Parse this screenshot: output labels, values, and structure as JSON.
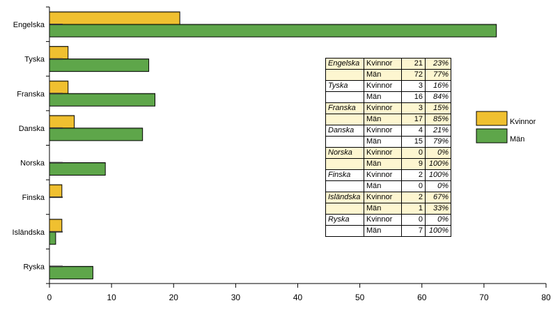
{
  "chart_data": {
    "type": "bar",
    "orientation": "horizontal",
    "categories": [
      "Engelska",
      "Tyska",
      "Franska",
      "Danska",
      "Norska",
      "Finska",
      "Isländska",
      "Ryska"
    ],
    "series": [
      {
        "name": "Kvinnor",
        "color": "#f0c030",
        "values": [
          21,
          3,
          3,
          4,
          0,
          2,
          2,
          0
        ]
      },
      {
        "name": "Män",
        "color": "#5ea64a",
        "values": [
          72,
          16,
          17,
          15,
          9,
          0,
          1,
          7
        ]
      }
    ],
    "xlim": [
      0,
      80
    ],
    "xticks": [
      0,
      10,
      20,
      30,
      40,
      50,
      60,
      70,
      80
    ],
    "legend_position": "right",
    "grid": false
  },
  "table": {
    "rows": [
      {
        "lang": "Engelska",
        "gender": "Kvinnor",
        "count": "21",
        "pct": "23%"
      },
      {
        "lang": "",
        "gender": "Män",
        "count": "72",
        "pct": "77%"
      },
      {
        "lang": "Tyska",
        "gender": "Kvinnor",
        "count": "3",
        "pct": "16%"
      },
      {
        "lang": "",
        "gender": "Män",
        "count": "16",
        "pct": "84%"
      },
      {
        "lang": "Franska",
        "gender": "Kvinnor",
        "count": "3",
        "pct": "15%"
      },
      {
        "lang": "",
        "gender": "Män",
        "count": "17",
        "pct": "85%"
      },
      {
        "lang": "Danska",
        "gender": "Kvinnor",
        "count": "4",
        "pct": "21%"
      },
      {
        "lang": "",
        "gender": "Män",
        "count": "15",
        "pct": "79%"
      },
      {
        "lang": "Norska",
        "gender": "Kvinnor",
        "count": "0",
        "pct": "0%"
      },
      {
        "lang": "",
        "gender": "Män",
        "count": "9",
        "pct": "100%"
      },
      {
        "lang": "Finska",
        "gender": "Kvinnor",
        "count": "2",
        "pct": "100%"
      },
      {
        "lang": "",
        "gender": "Män",
        "count": "0",
        "pct": "0%"
      },
      {
        "lang": "Isländska",
        "gender": "Kvinnor",
        "count": "2",
        "pct": "67%"
      },
      {
        "lang": "",
        "gender": "Män",
        "count": "1",
        "pct": "33%"
      },
      {
        "lang": "Ryska",
        "gender": "Kvinnor",
        "count": "0",
        "pct": "0%"
      },
      {
        "lang": "",
        "gender": "Män",
        "count": "7",
        "pct": "100%"
      }
    ]
  }
}
